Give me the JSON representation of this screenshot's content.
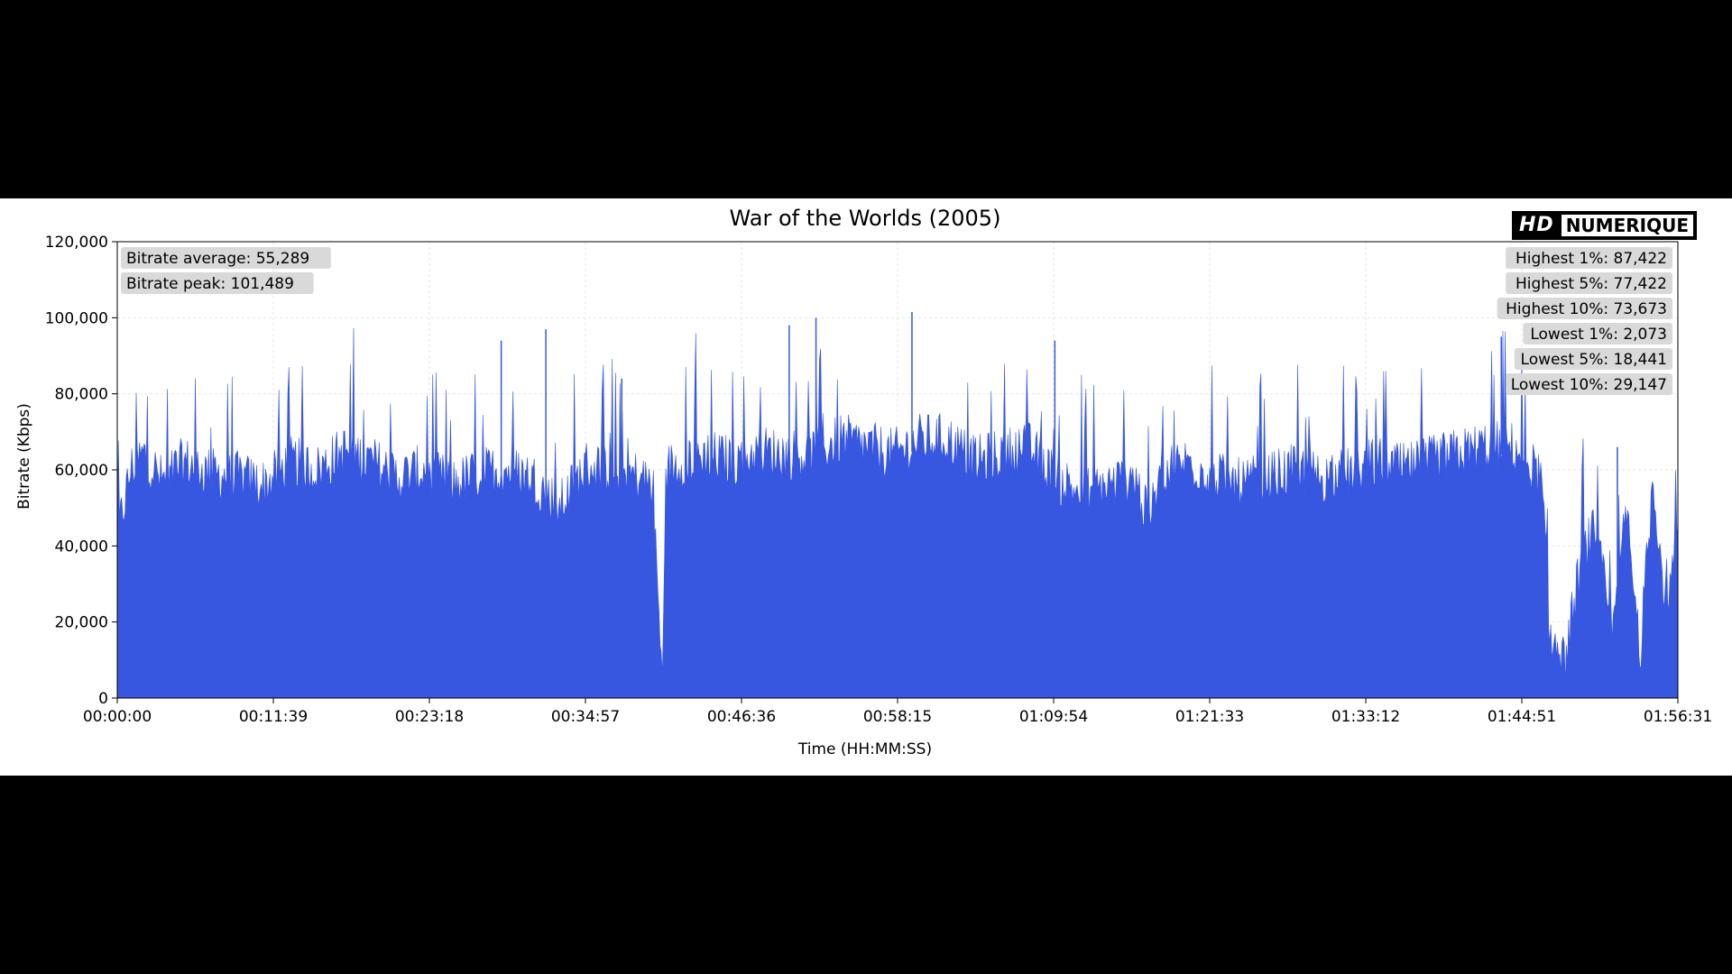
{
  "chart_data": {
    "type": "area",
    "title": "War of the Worlds (2005)",
    "xlabel": "Time (HH:MM:SS)",
    "ylabel": "Bitrate (Kbps)",
    "x_ticks": [
      "00:00:00",
      "00:11:39",
      "00:23:18",
      "00:34:57",
      "00:46:36",
      "00:58:15",
      "01:09:54",
      "01:21:33",
      "01:33:12",
      "01:44:51",
      "01:56:31"
    ],
    "y_ticks": [
      "0",
      "20,000",
      "40,000",
      "60,000",
      "80,000",
      "100,000",
      "120,000"
    ],
    "xlim_seconds": [
      0,
      6991
    ],
    "ylim": [
      0,
      120000
    ],
    "grid": true,
    "series_color": "#3757e0",
    "series": [
      {
        "x_seconds": [
          0,
          60,
          120,
          200,
          300,
          420,
          540,
          660,
          780,
          900,
          1020,
          1140,
          1260,
          1380,
          1500,
          1620,
          1740,
          1860,
          1980,
          2100,
          2220,
          2340,
          2400,
          2440,
          2460,
          2520,
          2640,
          2760,
          2880,
          3000,
          3120,
          3240,
          3360,
          3480,
          3600,
          3720,
          3840,
          3960,
          4080,
          4200,
          4320,
          4440,
          4560,
          4620,
          4680,
          4800,
          4920,
          5040,
          5160,
          5280,
          5400,
          5520,
          5640,
          5760,
          5880,
          6000,
          6120,
          6240,
          6300,
          6380,
          6420,
          6480,
          6560,
          6620,
          6700,
          6760,
          6820,
          6880,
          6940,
          6991
        ],
        "y": [
          40000,
          58000,
          62000,
          55000,
          60000,
          57000,
          56000,
          54000,
          60000,
          58000,
          63000,
          60000,
          56000,
          58000,
          54000,
          57000,
          58000,
          56000,
          48000,
          59000,
          58000,
          56000,
          54000,
          2000,
          58000,
          60000,
          62000,
          60000,
          63000,
          62000,
          62000,
          66000,
          64000,
          62000,
          66000,
          66000,
          60000,
          62000,
          64000,
          56000,
          52000,
          54000,
          56000,
          44000,
          58000,
          60000,
          56000,
          54000,
          56000,
          58000,
          56000,
          57000,
          60000,
          58000,
          60000,
          62000,
          64000,
          64000,
          62000,
          55000,
          14000,
          6000,
          35000,
          42000,
          14000,
          48000,
          8000,
          56000,
          20000,
          40000
        ],
        "peaks": [
          {
            "x_seconds": 1720,
            "y": 94000
          },
          {
            "x_seconds": 1920,
            "y": 97000
          },
          {
            "x_seconds": 2260,
            "y": 84000
          },
          {
            "x_seconds": 3010,
            "y": 98000
          },
          {
            "x_seconds": 3130,
            "y": 100000
          },
          {
            "x_seconds": 3560,
            "y": 101489
          },
          {
            "x_seconds": 4200,
            "y": 94000
          },
          {
            "x_seconds": 6200,
            "y": 95000
          },
          {
            "x_seconds": 6720,
            "y": 66000
          }
        ]
      }
    ],
    "stats_left": [
      {
        "label": "Bitrate average: 55,289"
      },
      {
        "label": "Bitrate peak: 101,489"
      }
    ],
    "stats_right": [
      {
        "label": "Highest 1%: 87,422"
      },
      {
        "label": "Highest 5%: 77,422"
      },
      {
        "label": "Highest 10%: 73,673"
      },
      {
        "label": "Lowest 1%: 2,073"
      },
      {
        "label": "Lowest 5%: 18,441"
      },
      {
        "label": "Lowest 10%: 29,147"
      }
    ]
  },
  "logo": {
    "hd": "HD",
    "name": "NUMERIQUE"
  }
}
